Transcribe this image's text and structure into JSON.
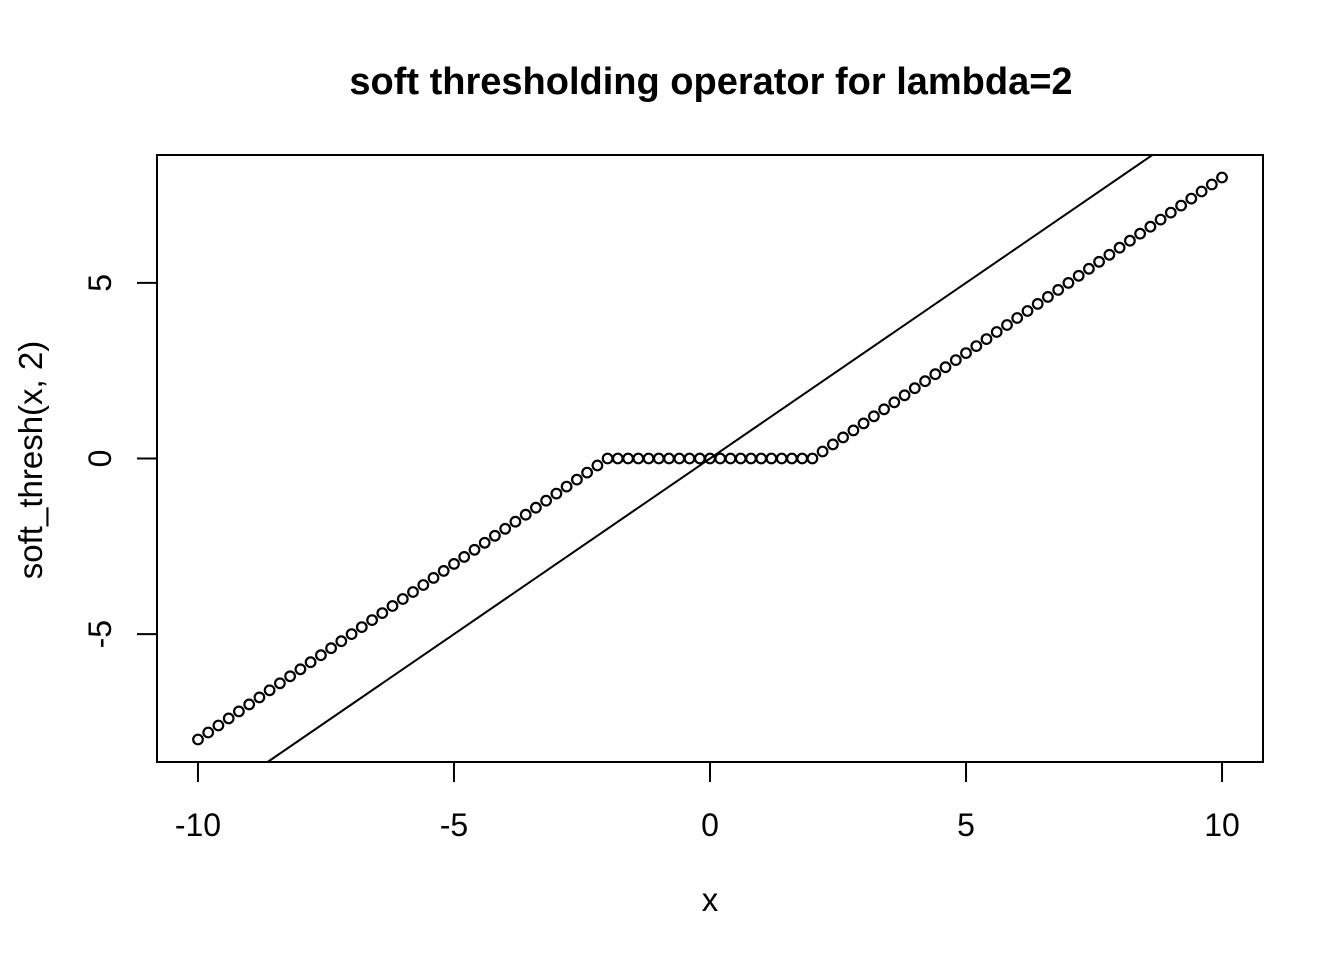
{
  "chart_data": {
    "type": "scatter",
    "title": "soft thresholding operator for lambda=2",
    "xlabel": "x",
    "ylabel": "soft_thresh(x, 2)",
    "x": [
      -10,
      -9.8,
      -9.6,
      -9.4,
      -9.2,
      -9,
      -8.8,
      -8.6,
      -8.4,
      -8.2,
      -8,
      -7.8,
      -7.6,
      -7.4,
      -7.2,
      -7,
      -6.8,
      -6.6,
      -6.4,
      -6.2,
      -6,
      -5.8,
      -5.6,
      -5.4,
      -5.2,
      -5,
      -4.8,
      -4.6,
      -4.4,
      -4.2,
      -4,
      -3.8,
      -3.6,
      -3.4,
      -3.2,
      -3,
      -2.8,
      -2.6,
      -2.4,
      -2.2,
      -2,
      -1.8,
      -1.6,
      -1.4,
      -1.2,
      -1,
      -0.8,
      -0.6,
      -0.4,
      -0.2,
      0,
      0.2,
      0.4,
      0.6,
      0.8,
      1,
      1.2,
      1.4,
      1.6,
      1.8,
      2,
      2.2,
      2.4,
      2.6,
      2.8,
      3,
      3.2,
      3.4,
      3.6,
      3.8,
      4,
      4.2,
      4.4,
      4.6,
      4.8,
      5,
      5.2,
      5.4,
      5.6,
      5.8,
      6,
      6.2,
      6.4,
      6.6,
      6.8,
      7,
      7.2,
      7.4,
      7.6,
      7.8,
      8,
      8.2,
      8.4,
      8.6,
      8.8,
      9,
      9.2,
      9.4,
      9.6,
      9.8,
      10
    ],
    "y": [
      -8,
      -7.8,
      -7.6,
      -7.4,
      -7.2,
      -7,
      -6.8,
      -6.6,
      -6.4,
      -6.2,
      -6,
      -5.8,
      -5.6,
      -5.4,
      -5.2,
      -5,
      -4.8,
      -4.6,
      -4.4,
      -4.2,
      -4,
      -3.8,
      -3.6,
      -3.4,
      -3.2,
      -3,
      -2.8,
      -2.6,
      -2.4,
      -2.2,
      -2,
      -1.8,
      -1.6,
      -1.4,
      -1.2,
      -1,
      -0.8,
      -0.6,
      -0.4,
      -0.2,
      0,
      0,
      0,
      0,
      0,
      0,
      0,
      0,
      0,
      0,
      0,
      0,
      0,
      0,
      0,
      0,
      0,
      0,
      0,
      0,
      0,
      0.2,
      0.4,
      0.6,
      0.8,
      1,
      1.2,
      1.4,
      1.6,
      1.8,
      2,
      2.2,
      2.4,
      2.6,
      2.8,
      3,
      3.2,
      3.4,
      3.6,
      3.8,
      4,
      4.2,
      4.4,
      4.6,
      4.8,
      5,
      5.2,
      5.4,
      5.6,
      5.8,
      6,
      6.2,
      6.4,
      6.6,
      6.8,
      7,
      7.2,
      7.4,
      7.6,
      7.8,
      8
    ],
    "reference_line": {
      "name": "identity line y = x",
      "intercept": 0,
      "slope": 1
    },
    "xticks": [
      -10,
      -5,
      0,
      5,
      10
    ],
    "xtick_labels": [
      "-10",
      "-5",
      "0",
      "5",
      "10"
    ],
    "yticks": [
      -5,
      0,
      5
    ],
    "ytick_labels": [
      "-5",
      "0",
      "5"
    ],
    "xlim": [
      -10.8,
      10.8
    ],
    "ylim": [
      -8.64,
      8.64
    ],
    "grid": false,
    "legend": null,
    "marker": "open-circle",
    "colors": {
      "points": "#000000",
      "line": "#000000",
      "axis": "#000000",
      "background": "#ffffff"
    }
  }
}
